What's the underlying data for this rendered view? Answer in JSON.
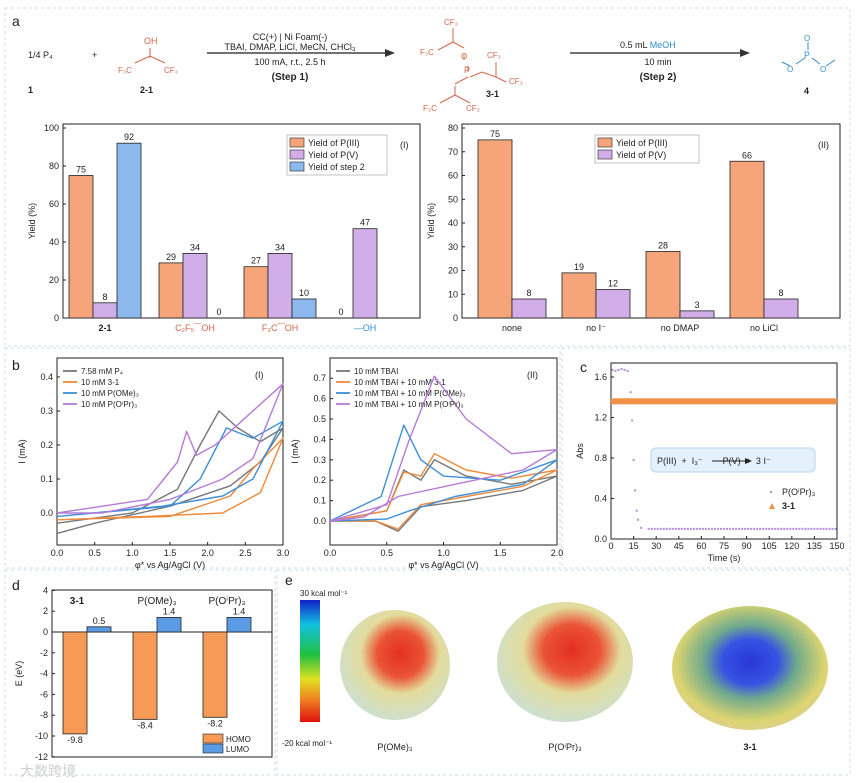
{
  "panels": {
    "a": "a",
    "b": "b",
    "c": "c",
    "d": "d",
    "e": "e"
  },
  "scheme": {
    "reactant1": "1/4  P₄",
    "plus": "+",
    "reactant1_label": "1",
    "reactant2_label": "2-1",
    "oh": "OH",
    "f3c": "F₃C",
    "cf3": "CF₃",
    "o": "O",
    "p": "P",
    "step1_line1": "CC(+) | Ni Foam(-)",
    "step1_line2": "TBAI, DMAP, LiCl, MeCN, CHCl₃",
    "step1_line3": "100 mA, r.t., 2.5 h",
    "step1_label": "(Step 1)",
    "product1_label": "3-1",
    "step2_line1_a": "0.5 mL ",
    "step2_line1_b": "MeOH",
    "step2_line2": "10 min",
    "step2_label": "(Step 2)",
    "product2_label": "4"
  },
  "chart_data": [
    {
      "type": "bar",
      "id": "a-I",
      "tag": "(I)",
      "ylabel": "Yield (%)",
      "ylim": [
        0,
        100
      ],
      "yticks": [
        0,
        20,
        40,
        60,
        80,
        100
      ],
      "categories": [
        "2-1",
        "C₂F₅⁀OH",
        "F₃C⁀OH",
        "—OH"
      ],
      "series": [
        {
          "name": "Yield of P(III)",
          "color": "#f6a57a",
          "values": [
            75,
            29,
            27,
            0
          ]
        },
        {
          "name": "Yield of P(V)",
          "color": "#d2aee8",
          "values": [
            8,
            34,
            34,
            47
          ]
        },
        {
          "name": "Yield of step 2",
          "color": "#8db8ee",
          "values": [
            92,
            0,
            10,
            null
          ]
        }
      ]
    },
    {
      "type": "bar",
      "id": "a-II",
      "tag": "(II)",
      "ylabel": "Yield (%)",
      "ylim": [
        0,
        80
      ],
      "yticks": [
        0,
        10,
        20,
        30,
        40,
        50,
        60,
        70,
        80
      ],
      "categories": [
        "none",
        "no I⁻",
        "no DMAP",
        "no LiCl"
      ],
      "series": [
        {
          "name": "Yield of P(III)",
          "color": "#f6a57a",
          "values": [
            75,
            19,
            28,
            66
          ]
        },
        {
          "name": "Yield of P(V)",
          "color": "#d2aee8",
          "values": [
            8,
            12,
            3,
            8
          ]
        }
      ]
    },
    {
      "type": "line",
      "id": "b-I",
      "tag": "(I)",
      "xlabel": "φ* vs Ag/AgCl (V)",
      "ylabel": "I (mA)",
      "xlim": [
        0,
        3
      ],
      "ylim": [
        -0.1,
        0.4
      ],
      "xticks": [
        "0.0",
        "0.5",
        "1.0",
        "1.5",
        "2.0",
        "2.5",
        "3.0"
      ],
      "yticks": [
        "0.0",
        "0.1",
        "0.2",
        "0.3",
        "0.4"
      ],
      "series": [
        {
          "name": "7.58 mM P₄",
          "color": "#777777",
          "points": [
            [
              0,
              -0.03
            ],
            [
              1,
              0.0
            ],
            [
              1.6,
              0.07
            ],
            [
              1.9,
              0.2
            ],
            [
              2.15,
              0.3
            ],
            [
              2.4,
              0.25
            ],
            [
              2.7,
              0.21
            ],
            [
              3,
              0.25
            ],
            [
              2.7,
              0.15
            ],
            [
              2.3,
              0.08
            ],
            [
              1.5,
              0.02
            ],
            [
              0.5,
              -0.03
            ],
            [
              0,
              -0.06
            ]
          ]
        },
        {
          "name": "10 mM 3-1",
          "color": "#ee8a3c",
          "points": [
            [
              0,
              -0.02
            ],
            [
              1.5,
              -0.01
            ],
            [
              2.3,
              0.05
            ],
            [
              2.6,
              0.13
            ],
            [
              3,
              0.22
            ],
            [
              2.7,
              0.06
            ],
            [
              2.2,
              0.0
            ],
            [
              1.2,
              -0.01
            ],
            [
              0,
              -0.02
            ]
          ]
        },
        {
          "name": "10 mM P(OMe)₃",
          "color": "#3f8fd6",
          "points": [
            [
              0,
              -0.01
            ],
            [
              1.5,
              0.02
            ],
            [
              1.9,
              0.1
            ],
            [
              2.25,
              0.25
            ],
            [
              2.6,
              0.22
            ],
            [
              3,
              0.27
            ],
            [
              2.6,
              0.1
            ],
            [
              2.2,
              0.05
            ],
            [
              1.4,
              0.02
            ],
            [
              0,
              -0.01
            ]
          ]
        },
        {
          "name": "10 mM P(OⁱPr)₃",
          "color": "#b67ad8",
          "points": [
            [
              0,
              0.0
            ],
            [
              1.2,
              0.04
            ],
            [
              1.6,
              0.15
            ],
            [
              1.72,
              0.24
            ],
            [
              1.85,
              0.17
            ],
            [
              2.1,
              0.2
            ],
            [
              2.5,
              0.28
            ],
            [
              3,
              0.38
            ],
            [
              2.6,
              0.16
            ],
            [
              2.2,
              0.1
            ],
            [
              1.5,
              0.04
            ],
            [
              0.6,
              0.0
            ],
            [
              0,
              0.0
            ]
          ]
        }
      ]
    },
    {
      "type": "line",
      "id": "b-II",
      "tag": "(II)",
      "xlabel": "φ* vs Ag/AgCl (V)",
      "ylabel": "I (mA)",
      "xlim": [
        0,
        2
      ],
      "ylim": [
        -0.1,
        0.8
      ],
      "xticks": [
        "0.0",
        "0.5",
        "1.0",
        "1.5",
        "2.0"
      ],
      "yticks": [
        "0.0",
        "0.1",
        "0.2",
        "0.3",
        "0.4",
        "0.5",
        "0.6",
        "0.7"
      ],
      "series": [
        {
          "name": "10 mM TBAI",
          "color": "#777777",
          "points": [
            [
              0,
              0.0
            ],
            [
              0.5,
              0.05
            ],
            [
              0.65,
              0.25
            ],
            [
              0.8,
              0.2
            ],
            [
              0.92,
              0.3
            ],
            [
              1.2,
              0.22
            ],
            [
              1.6,
              0.18
            ],
            [
              2,
              0.22
            ],
            [
              1.7,
              0.15
            ],
            [
              1.2,
              0.1
            ],
            [
              0.8,
              0.07
            ],
            [
              0.6,
              -0.05
            ],
            [
              0.4,
              0.0
            ],
            [
              0,
              0.0
            ]
          ]
        },
        {
          "name": "10 mM TBAI + 10 mM 3-1",
          "color": "#ee8a3c",
          "points": [
            [
              0,
              0.0
            ],
            [
              0.5,
              0.05
            ],
            [
              0.65,
              0.24
            ],
            [
              0.8,
              0.22
            ],
            [
              0.92,
              0.33
            ],
            [
              1.2,
              0.25
            ],
            [
              1.6,
              0.21
            ],
            [
              2,
              0.25
            ],
            [
              1.7,
              0.17
            ],
            [
              1.2,
              0.12
            ],
            [
              0.8,
              0.08
            ],
            [
              0.6,
              -0.04
            ],
            [
              0.4,
              0.0
            ],
            [
              0,
              0.0
            ]
          ]
        },
        {
          "name": "10 mM TBAI + 10 mM P(OMe)₃",
          "color": "#3f8fd6",
          "points": [
            [
              0,
              0.0
            ],
            [
              0.45,
              0.12
            ],
            [
              0.65,
              0.47
            ],
            [
              0.8,
              0.3
            ],
            [
              1.0,
              0.22
            ],
            [
              1.5,
              0.2
            ],
            [
              2,
              0.3
            ],
            [
              1.7,
              0.18
            ],
            [
              1.1,
              0.12
            ],
            [
              0.7,
              0.05
            ],
            [
              0.5,
              0.01
            ],
            [
              0,
              0.0
            ]
          ]
        },
        {
          "name": "10 mM TBAI + 10 mM P(OⁱPr)₃",
          "color": "#b67ad8",
          "points": [
            [
              0,
              0.0
            ],
            [
              0.5,
              0.08
            ],
            [
              0.7,
              0.4
            ],
            [
              0.92,
              0.71
            ],
            [
              1.2,
              0.5
            ],
            [
              1.6,
              0.33
            ],
            [
              2,
              0.35
            ],
            [
              1.7,
              0.25
            ],
            [
              1.1,
              0.18
            ],
            [
              0.6,
              0.12
            ],
            [
              0.3,
              0.02
            ],
            [
              0,
              0.0
            ]
          ]
        }
      ]
    },
    {
      "type": "scatter",
      "id": "c",
      "xlabel": "Time (s)",
      "ylabel": "Abs",
      "xlim": [
        0,
        150
      ],
      "ylim": [
        0,
        1.75
      ],
      "xticks": [
        "0",
        "15",
        "30",
        "45",
        "60",
        "75",
        "90",
        "105",
        "120",
        "135",
        "150"
      ],
      "yticks": [
        "0.0",
        "0.4",
        "0.8",
        "1.2",
        "1.6"
      ],
      "annotation": "P(III)  +  I₃⁻        P(V)  +  3 I⁻",
      "series": [
        {
          "name": "P(OⁱPr)₃",
          "color": "#b38ddb",
          "points": [
            [
              1,
              1.67
            ],
            [
              3,
              1.66
            ],
            [
              5,
              1.67
            ],
            [
              7,
              1.68
            ],
            [
              9,
              1.67
            ],
            [
              11,
              1.66
            ],
            [
              13,
              1.45
            ],
            [
              14,
              1.17
            ],
            [
              15,
              0.78
            ],
            [
              16,
              0.48
            ],
            [
              17,
              0.28
            ],
            [
              18,
              0.19
            ],
            [
              20,
              0.11
            ],
            [
              25,
              0.1
            ],
            [
              150,
              0.1
            ]
          ]
        },
        {
          "name": "3-1",
          "color": "#f2924a",
          "points": [
            [
              0,
              1.37
            ],
            [
              150,
              1.36
            ]
          ]
        }
      ]
    },
    {
      "type": "bar",
      "id": "d",
      "ylabel": "E (eV)",
      "ylim": [
        -12,
        4
      ],
      "yticks": [
        "4",
        "2",
        "0",
        "-2",
        "-4",
        "-6",
        "-8",
        "-10",
        "-12"
      ],
      "categories": [
        "3-1",
        "P(OMe)₃",
        "P(OⁱPr)₃"
      ],
      "series": [
        {
          "name": "HOMO",
          "color": "#f79a55",
          "values": [
            -9.8,
            -8.4,
            -8.2
          ]
        },
        {
          "name": "LUMO",
          "color": "#5b9be3",
          "values": [
            0.5,
            1.4,
            1.4
          ]
        }
      ]
    }
  ],
  "esp": {
    "max_label": "30 kcal mol⁻¹",
    "min_label": "-20 kcal mol⁻¹",
    "molecules": [
      "P(OMe)₃",
      "P(OⁱPr)₃",
      "3-1"
    ]
  },
  "watermark": "大数跨境"
}
